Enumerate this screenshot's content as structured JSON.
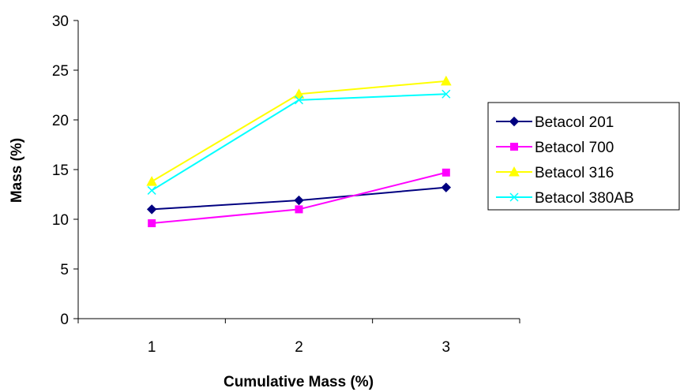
{
  "chart_data": {
    "type": "line",
    "title": "",
    "xlabel": "Cumulative Mass (%)",
    "ylabel": "Mass (%)",
    "categories": [
      "1",
      "2",
      "3"
    ],
    "ylim": [
      0,
      30
    ],
    "yticks": [
      "0",
      "5",
      "10",
      "15",
      "20",
      "25",
      "30"
    ],
    "grid": false,
    "legend_position": "right",
    "series": [
      {
        "name": "Betacol 201",
        "values": [
          11.0,
          11.9,
          13.2
        ],
        "color": "#000080",
        "marker": "diamond"
      },
      {
        "name": "Betacol 700",
        "values": [
          9.6,
          11.0,
          14.7
        ],
        "color": "#ff00ff",
        "marker": "square"
      },
      {
        "name": "Betacol 316",
        "values": [
          13.8,
          22.6,
          23.9
        ],
        "color": "#ffff00",
        "marker": "triangle"
      },
      {
        "name": "Betacol 380AB",
        "values": [
          12.9,
          22.0,
          22.6
        ],
        "color": "#00ffff",
        "marker": "x"
      }
    ]
  }
}
